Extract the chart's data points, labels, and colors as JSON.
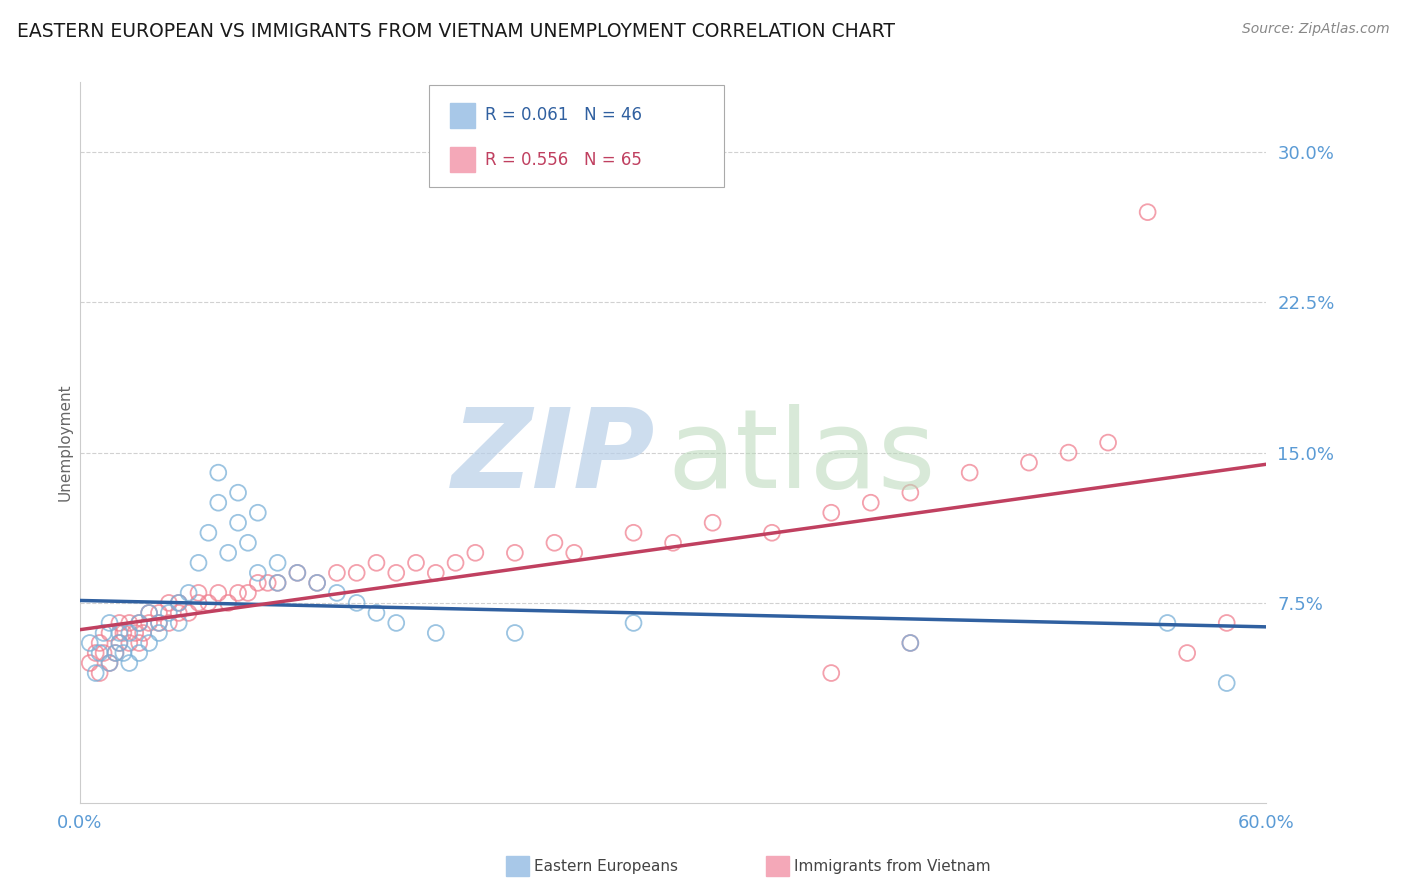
{
  "title": "EASTERN EUROPEAN VS IMMIGRANTS FROM VIETNAM UNEMPLOYMENT CORRELATION CHART",
  "source_text": "Source: ZipAtlas.com",
  "ylabel": "Unemployment",
  "xlim": [
    0.0,
    0.6
  ],
  "ylim": [
    -0.025,
    0.335
  ],
  "yticks": [
    0.075,
    0.15,
    0.225,
    0.3
  ],
  "ytick_labels": [
    "7.5%",
    "15.0%",
    "22.5%",
    "30.0%"
  ],
  "xticks": [
    0.0,
    0.6
  ],
  "xtick_labels": [
    "0.0%",
    "60.0%"
  ],
  "title_color": "#1a1a1a",
  "title_fontsize": 13.5,
  "axis_tick_color": "#5b9bd5",
  "legend_r1": "R = 0.061",
  "legend_n1": "N = 46",
  "legend_r2": "R = 0.556",
  "legend_n2": "N = 65",
  "legend_color1": "#a8c8e8",
  "legend_color2": "#f4a8b8",
  "blue_color": "#7ab0d8",
  "pink_color": "#f08090",
  "blue_line_color": "#3060a0",
  "pink_line_color": "#c04060",
  "grid_color": "#cccccc",
  "background_color": "#ffffff",
  "blue_x": [
    0.005,
    0.008,
    0.01,
    0.012,
    0.015,
    0.015,
    0.018,
    0.02,
    0.02,
    0.022,
    0.025,
    0.025,
    0.03,
    0.03,
    0.035,
    0.035,
    0.04,
    0.04,
    0.045,
    0.05,
    0.05,
    0.055,
    0.06,
    0.065,
    0.07,
    0.07,
    0.075,
    0.08,
    0.08,
    0.085,
    0.09,
    0.09,
    0.1,
    0.1,
    0.11,
    0.12,
    0.13,
    0.14,
    0.15,
    0.16,
    0.18,
    0.22,
    0.28,
    0.42,
    0.55,
    0.58
  ],
  "blue_y": [
    0.055,
    0.04,
    0.05,
    0.06,
    0.045,
    0.065,
    0.05,
    0.055,
    0.06,
    0.05,
    0.045,
    0.06,
    0.05,
    0.065,
    0.055,
    0.07,
    0.06,
    0.065,
    0.07,
    0.065,
    0.075,
    0.08,
    0.095,
    0.11,
    0.125,
    0.14,
    0.1,
    0.115,
    0.13,
    0.105,
    0.09,
    0.12,
    0.085,
    0.095,
    0.09,
    0.085,
    0.08,
    0.075,
    0.07,
    0.065,
    0.06,
    0.06,
    0.065,
    0.055,
    0.065,
    0.035
  ],
  "pink_x": [
    0.005,
    0.008,
    0.01,
    0.01,
    0.012,
    0.015,
    0.015,
    0.018,
    0.02,
    0.02,
    0.022,
    0.025,
    0.025,
    0.028,
    0.03,
    0.03,
    0.032,
    0.035,
    0.035,
    0.04,
    0.04,
    0.045,
    0.045,
    0.05,
    0.05,
    0.055,
    0.06,
    0.06,
    0.065,
    0.07,
    0.075,
    0.08,
    0.085,
    0.09,
    0.095,
    0.1,
    0.11,
    0.12,
    0.13,
    0.14,
    0.15,
    0.16,
    0.17,
    0.18,
    0.19,
    0.2,
    0.22,
    0.24,
    0.25,
    0.28,
    0.3,
    0.32,
    0.35,
    0.38,
    0.4,
    0.42,
    0.45,
    0.48,
    0.5,
    0.52,
    0.54,
    0.56,
    0.58,
    0.38,
    0.42
  ],
  "pink_y": [
    0.045,
    0.05,
    0.04,
    0.055,
    0.05,
    0.045,
    0.06,
    0.05,
    0.055,
    0.065,
    0.06,
    0.055,
    0.065,
    0.06,
    0.055,
    0.065,
    0.06,
    0.065,
    0.07,
    0.065,
    0.07,
    0.065,
    0.075,
    0.07,
    0.075,
    0.07,
    0.075,
    0.08,
    0.075,
    0.08,
    0.075,
    0.08,
    0.08,
    0.085,
    0.085,
    0.085,
    0.09,
    0.085,
    0.09,
    0.09,
    0.095,
    0.09,
    0.095,
    0.09,
    0.095,
    0.1,
    0.1,
    0.105,
    0.1,
    0.11,
    0.105,
    0.115,
    0.11,
    0.12,
    0.125,
    0.13,
    0.14,
    0.145,
    0.15,
    0.155,
    0.27,
    0.05,
    0.065,
    0.04,
    0.055
  ]
}
